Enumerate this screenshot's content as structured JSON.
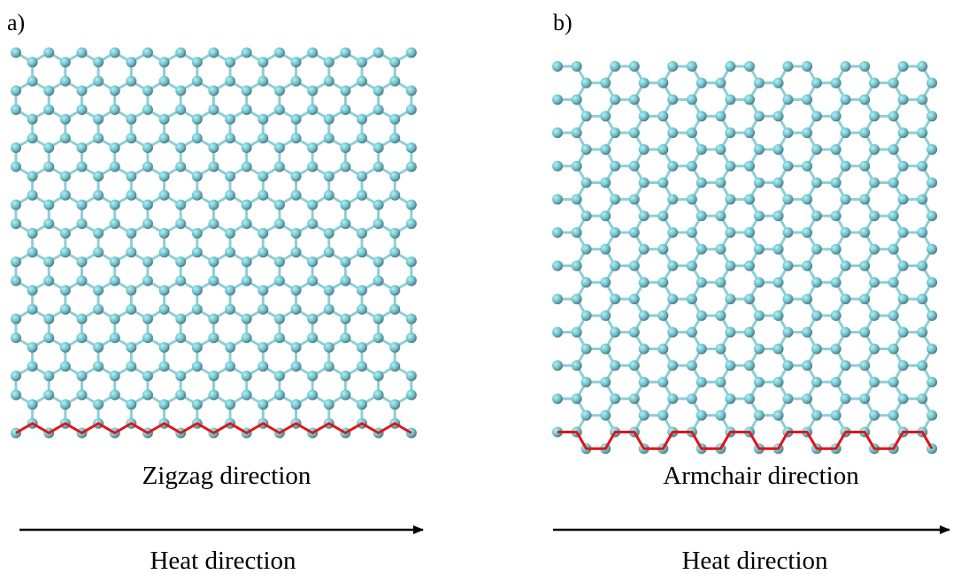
{
  "panels": [
    {
      "label": "a)",
      "edge_caption": "Zigzag direction",
      "arrow_caption": "Heat direction"
    },
    {
      "label": "b)",
      "edge_caption": "Armchair direction",
      "arrow_caption": "Heat direction"
    }
  ]
}
